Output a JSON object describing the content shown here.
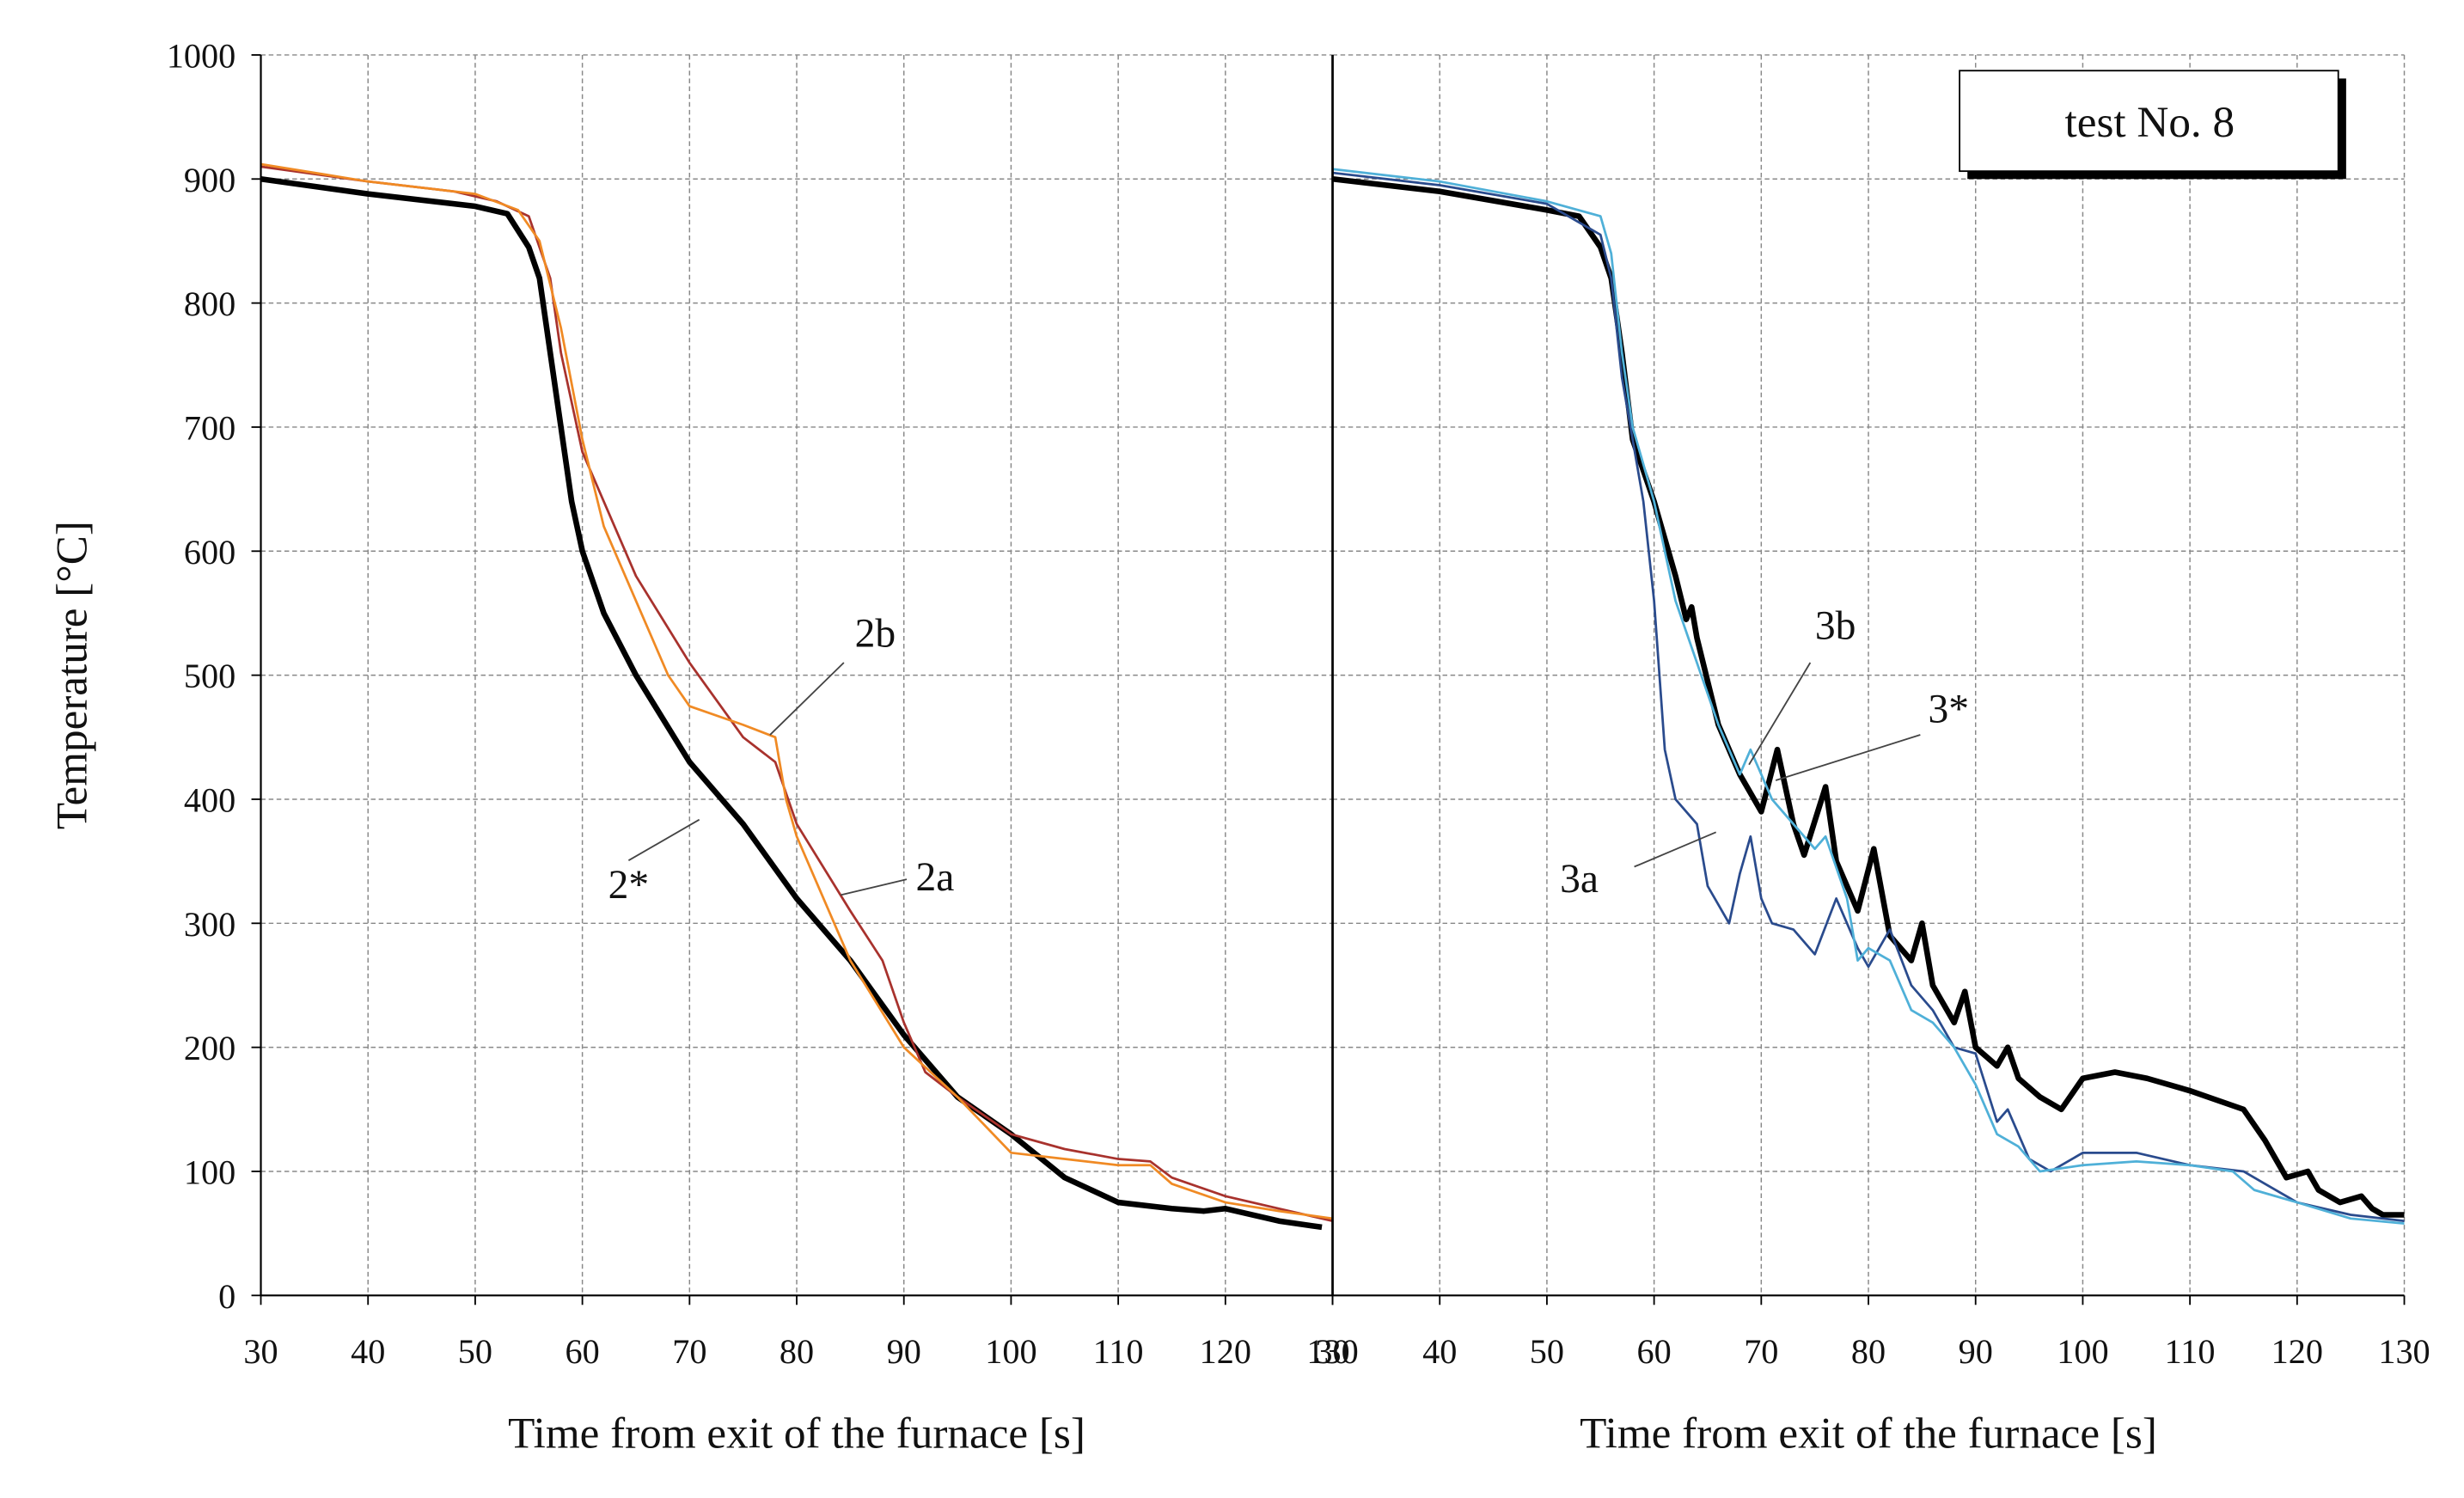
{
  "chart_data": [
    {
      "type": "line",
      "ylabel": "Temperature [°C]",
      "xlabel": "Time from exit of the furnace [s]",
      "xlim": [
        30,
        130
      ],
      "xticks": [
        30,
        40,
        50,
        60,
        70,
        80,
        90,
        100,
        110,
        120,
        130
      ],
      "ylim": [
        0,
        1000
      ],
      "yticks": [
        0,
        100,
        200,
        300,
        400,
        500,
        600,
        700,
        800,
        900,
        1000
      ],
      "grid": true,
      "series": [
        {
          "name": "2*",
          "color": "#000000",
          "x": [
            30,
            40,
            50,
            53,
            55,
            56,
            57,
            58,
            59,
            60,
            62,
            65,
            70,
            75,
            80,
            85,
            90,
            95,
            100,
            105,
            110,
            115,
            118,
            120,
            125,
            129
          ],
          "values": [
            900,
            888,
            878,
            872,
            845,
            820,
            760,
            700,
            640,
            600,
            550,
            500,
            430,
            380,
            320,
            270,
            210,
            160,
            130,
            95,
            75,
            70,
            68,
            70,
            60,
            55
          ]
        },
        {
          "name": "2a",
          "color": "#a8322d",
          "x": [
            30,
            40,
            48,
            52,
            55,
            57,
            58,
            60,
            62,
            65,
            70,
            75,
            78,
            80,
            85,
            88,
            90,
            92,
            95,
            100,
            105,
            110,
            113,
            115,
            120,
            125,
            130
          ],
          "values": [
            910,
            898,
            890,
            882,
            870,
            820,
            760,
            680,
            640,
            580,
            510,
            450,
            430,
            380,
            310,
            270,
            220,
            180,
            160,
            130,
            118,
            110,
            108,
            95,
            80,
            70,
            60
          ]
        },
        {
          "name": "2b",
          "color": "#f08a24",
          "x": [
            30,
            40,
            50,
            54,
            56,
            58,
            60,
            62,
            65,
            68,
            70,
            75,
            78,
            79,
            80,
            85,
            90,
            95,
            100,
            105,
            110,
            113,
            115,
            120,
            125,
            130
          ],
          "values": [
            912,
            898,
            888,
            875,
            850,
            780,
            690,
            620,
            560,
            500,
            475,
            460,
            450,
            400,
            370,
            270,
            200,
            160,
            115,
            110,
            105,
            105,
            90,
            75,
            68,
            62
          ]
        }
      ]
    },
    {
      "type": "line",
      "xlabel": "Time from exit of the furnace [s]",
      "note": "test No. 8",
      "xlim": [
        30,
        130
      ],
      "xticks": [
        30,
        40,
        50,
        60,
        70,
        80,
        90,
        100,
        110,
        120,
        130
      ],
      "ylim": [
        0,
        1000
      ],
      "yticks": [
        0,
        100,
        200,
        300,
        400,
        500,
        600,
        700,
        800,
        900,
        1000
      ],
      "grid": true,
      "series": [
        {
          "name": "3*",
          "color": "#000000",
          "x": [
            30,
            40,
            50,
            53,
            55,
            56,
            57,
            58,
            60,
            62,
            63,
            63.5,
            64,
            66,
            68,
            70,
            71.5,
            73,
            74,
            76,
            77,
            79,
            80.5,
            82,
            84,
            85,
            86,
            88,
            89,
            90,
            92,
            93,
            94,
            96,
            98,
            100,
            103,
            106,
            110,
            115,
            117,
            119,
            121,
            122,
            124,
            126,
            127,
            128,
            130
          ],
          "values": [
            900,
            890,
            875,
            870,
            845,
            820,
            760,
            690,
            640,
            580,
            545,
            555,
            530,
            460,
            420,
            390,
            440,
            380,
            355,
            410,
            350,
            310,
            360,
            290,
            270,
            300,
            250,
            220,
            245,
            200,
            185,
            200,
            175,
            160,
            150,
            175,
            180,
            175,
            165,
            150,
            125,
            95,
            100,
            85,
            75,
            80,
            70,
            65,
            65
          ]
        },
        {
          "name": "3a",
          "color": "#2a4b8d",
          "x": [
            30,
            40,
            50,
            55,
            56,
            57,
            58,
            59,
            60,
            61,
            62,
            64,
            65,
            67,
            68,
            69,
            70,
            71,
            73,
            75,
            77,
            79,
            80,
            82,
            84,
            86,
            88,
            90,
            92,
            93,
            95,
            97,
            100,
            105,
            110,
            115,
            117,
            120,
            125,
            130
          ],
          "values": [
            905,
            895,
            880,
            855,
            820,
            740,
            690,
            640,
            560,
            440,
            400,
            380,
            330,
            300,
            340,
            370,
            320,
            300,
            295,
            275,
            320,
            280,
            265,
            295,
            250,
            230,
            200,
            195,
            140,
            150,
            110,
            100,
            115,
            115,
            105,
            100,
            90,
            75,
            65,
            60
          ]
        },
        {
          "name": "3b",
          "color": "#4fb0d8",
          "x": [
            30,
            40,
            50,
            55,
            56,
            57,
            58,
            60,
            62,
            64,
            66,
            68,
            69,
            70,
            71,
            73,
            75,
            76,
            78,
            79,
            80,
            82,
            84,
            86,
            88,
            90,
            92,
            94,
            96,
            100,
            105,
            110,
            114,
            116,
            120,
            125,
            130
          ],
          "values": [
            908,
            898,
            882,
            870,
            840,
            760,
            700,
            640,
            560,
            510,
            460,
            420,
            440,
            420,
            400,
            380,
            360,
            370,
            320,
            270,
            280,
            270,
            230,
            220,
            200,
            170,
            130,
            120,
            100,
            105,
            108,
            105,
            100,
            85,
            75,
            62,
            58
          ]
        }
      ]
    }
  ]
}
